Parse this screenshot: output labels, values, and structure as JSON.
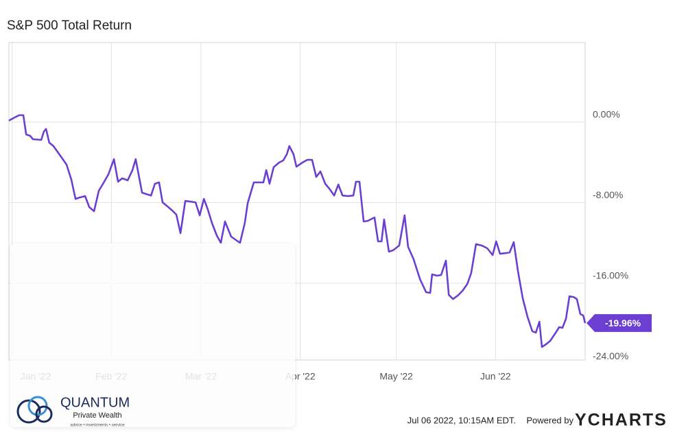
{
  "chart_data": {
    "type": "line",
    "title": "S&P 500 Total Return",
    "xlim": [
      0,
      180
    ],
    "xticks": [
      {
        "value": 1,
        "label": "Jan '22"
      },
      {
        "value": 32,
        "label": "Feb '22"
      },
      {
        "value": 60,
        "label": "Mar '22"
      },
      {
        "value": 91,
        "label": "Apr '22"
      },
      {
        "value": 121,
        "label": "May '22"
      },
      {
        "value": 152,
        "label": "Jun '22"
      }
    ],
    "ylim": [
      -24,
      8
    ],
    "yticks": [
      {
        "value": 0,
        "label": "0.00%"
      },
      {
        "value": -8,
        "label": "-8.00%"
      },
      {
        "value": -16,
        "label": "-16.00%"
      },
      {
        "value": -24,
        "label": "-24.00%"
      }
    ],
    "grid": true,
    "x": [
      0,
      1.5,
      3.2,
      4.5,
      5.4,
      6.6,
      7.5,
      10.1,
      10.9,
      11.6,
      12.6,
      13.9,
      16.5,
      18.0,
      19.5,
      20.8,
      22.1,
      23.8,
      25.1,
      26.6,
      28.1,
      29.4,
      31.1,
      32.8,
      34.1,
      35.4,
      37.1,
      38.6,
      39.6,
      41.6,
      42.9,
      44.4,
      45.6,
      46.9,
      48.0,
      49.3,
      50.8,
      52.3,
      53.6,
      55.1,
      56.8,
      58.3,
      59.6,
      60.9,
      62.1,
      63.4,
      64.9,
      66.2,
      67.5,
      69.4,
      70.9,
      72.2,
      73.7,
      74.6,
      76.5,
      78.0,
      79.5,
      80.4,
      81.4,
      82.7,
      84.4,
      85.7,
      86.8,
      87.6,
      88.9,
      89.8,
      91.7,
      93.2,
      94.7,
      96.0,
      97.3,
      98.8,
      100.1,
      101.6,
      102.9,
      104.2,
      105.9,
      107.6,
      108.4,
      109.5,
      110.8,
      112.1,
      114.2,
      115.3,
      116.4,
      117.2,
      118.7,
      120.0,
      121.9,
      123.6,
      124.7,
      126.4,
      128.4,
      130.3,
      131.6,
      132.2,
      133.7,
      135.0,
      136.5,
      137.4,
      138.7,
      140.2,
      141.7,
      143.2,
      144.4,
      145.9,
      147.7,
      149.4,
      151.1,
      152.2,
      153.4,
      155.2,
      156.4,
      157.7,
      159.0,
      160.5,
      162.0,
      163.5,
      164.6,
      165.7,
      166.5,
      167.8,
      169.1,
      170.8,
      171.9,
      172.9,
      174.0,
      175.1,
      176.4,
      177.4,
      178.5,
      179.4,
      180.0
    ],
    "series": [
      {
        "name": "S&P 500 Total Return",
        "color": "#6a3fd1",
        "values": [
          0.14,
          0.41,
          0.68,
          0.68,
          -1.23,
          -1.36,
          -1.7,
          -1.77,
          -0.95,
          -0.68,
          -2.04,
          -2.38,
          -3.54,
          -4.22,
          -5.72,
          -7.63,
          -7.49,
          -7.35,
          -8.44,
          -8.85,
          -6.81,
          -6.13,
          -5.18,
          -3.68,
          -5.92,
          -5.58,
          -5.79,
          -4.77,
          -3.68,
          -7.01,
          -7.15,
          -7.29,
          -6.13,
          -5.99,
          -7.97,
          -8.31,
          -8.72,
          -9.19,
          -11.03,
          -7.83,
          -7.9,
          -7.97,
          -9.26,
          -7.63,
          -8.65,
          -10.01,
          -11.24,
          -11.99,
          -9.87,
          -11.37,
          -11.71,
          -11.99,
          -10.01,
          -8.04,
          -5.99,
          -5.99,
          -5.99,
          -4.77,
          -6.13,
          -4.49,
          -4.02,
          -3.81,
          -3.2,
          -2.38,
          -3.2,
          -4.43,
          -4.02,
          -3.75,
          -3.75,
          -5.45,
          -4.9,
          -6.13,
          -6.61,
          -7.29,
          -6.2,
          -7.29,
          -7.35,
          -7.29,
          -5.92,
          -5.92,
          -9.87,
          -9.81,
          -9.47,
          -11.85,
          -11.85,
          -9.67,
          -12.87,
          -12.73,
          -12.26,
          -9.26,
          -12.39,
          -13.62,
          -15.59,
          -16.89,
          -16.96,
          -15.12,
          -15.25,
          -15.19,
          -13.76,
          -17.16,
          -17.57,
          -17.23,
          -16.75,
          -16.07,
          -14.98,
          -12.12,
          -12.26,
          -12.53,
          -13.21,
          -11.85,
          -13.08,
          -13.01,
          -12.94,
          -11.92,
          -14.78,
          -17.5,
          -19.34,
          -20.77,
          -20.91,
          -19.82,
          -22.34,
          -22.06,
          -21.72,
          -20.91,
          -20.36,
          -20.43,
          -19.54,
          -17.3,
          -17.37,
          -17.57,
          -19.07,
          -19.2,
          -19.96
        ],
        "value_labels": [
          null,
          null,
          null,
          null,
          null,
          null,
          null,
          null,
          null,
          null,
          null,
          null,
          null,
          null,
          null,
          null,
          null,
          null,
          null,
          null,
          null,
          null,
          null,
          null,
          null,
          null,
          null,
          null,
          null,
          null,
          null,
          null,
          null,
          null,
          null,
          null,
          null,
          null,
          null,
          null,
          null,
          null,
          null,
          null,
          null,
          null,
          null,
          null,
          null,
          null,
          null,
          null,
          null,
          null,
          null,
          null,
          null,
          null,
          null,
          null,
          null,
          null,
          null,
          null,
          null,
          null,
          null,
          null,
          null,
          null,
          null,
          null,
          null,
          null,
          null,
          null,
          null,
          null,
          null,
          null,
          null,
          null,
          null,
          null,
          null,
          null,
          null,
          null,
          null,
          null,
          null,
          null,
          null,
          null,
          null,
          null,
          null,
          null,
          null,
          null,
          null,
          null,
          null,
          null,
          null,
          null,
          null,
          null,
          null,
          null,
          null,
          null,
          null,
          null,
          null,
          null,
          null,
          null,
          null,
          null,
          null,
          null,
          null,
          null,
          null,
          null,
          null,
          null,
          null,
          null,
          null,
          null,
          "-19.96%"
        ]
      }
    ]
  },
  "logo": {
    "name": "QUANTUM",
    "subtitle": "Private Wealth",
    "tagline": "advice • investments • service"
  },
  "footer": {
    "timestamp": "Jul 06 2022, 10:15AM EDT.",
    "powered": "Powered by",
    "brand": "YCHARTS"
  }
}
